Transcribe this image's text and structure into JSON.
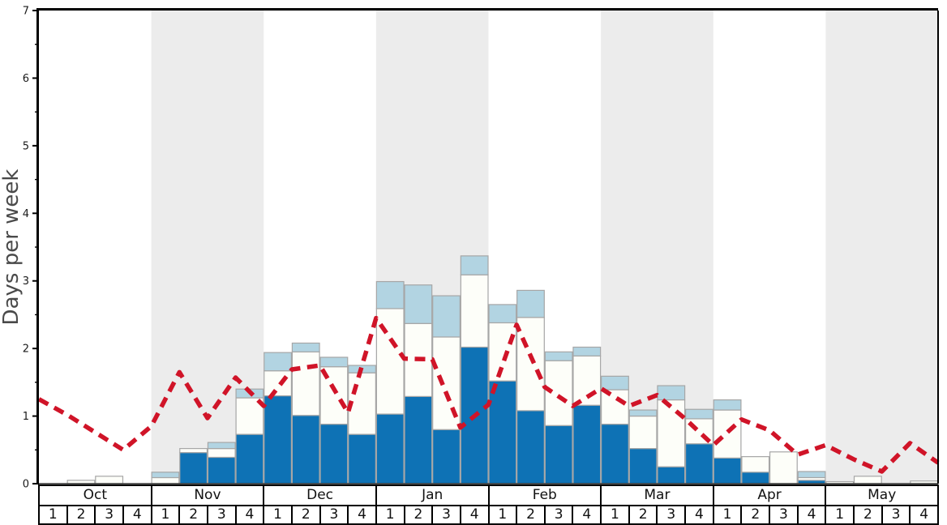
{
  "chart_data": {
    "type": "bar",
    "stacked": true,
    "title": "",
    "ylabel": "Days per week",
    "ylim": [
      0,
      7
    ],
    "y_major_ticks": [
      0,
      1,
      2,
      3,
      4,
      5,
      6,
      7
    ],
    "y_minor_tick_step": 0.5,
    "grid": false,
    "legend": "none",
    "months": [
      "Oct",
      "Nov",
      "Dec",
      "Jan",
      "Feb",
      "Mar",
      "Apr",
      "May"
    ],
    "week_labels": [
      "1",
      "2",
      "3",
      "4"
    ],
    "shaded_months": [
      "Nov",
      "Jan",
      "Mar",
      "May"
    ],
    "colors": {
      "bar_dark_blue": "#0e72b5",
      "bar_white": "#fdfef9",
      "bar_light_blue": "#b2d4e2",
      "bar_outline": "#a6a6a6",
      "dashed_line_red": "#d01428",
      "month_band_gray": "#ececec",
      "axis_black": "#000000"
    },
    "series": [
      {
        "name": "dark-blue-days",
        "color": "#0e72b5",
        "values": [
          0,
          0,
          0,
          0,
          0,
          0.46,
          0.39,
          0.73,
          1.3,
          1.01,
          0.88,
          0.73,
          1.03,
          1.29,
          0.8,
          2.02,
          1.52,
          1.08,
          0.86,
          1.16,
          0.88,
          0.52,
          0.25,
          0.59,
          0.38,
          0.17,
          0,
          0.05,
          0,
          0,
          0,
          0
        ]
      },
      {
        "name": "white-days",
        "color": "#fdfef9",
        "values": [
          0,
          0.05,
          0.11,
          0,
          0.09,
          0.06,
          0.13,
          0.54,
          0.37,
          0.94,
          0.85,
          0.91,
          1.56,
          1.08,
          1.37,
          1.07,
          0.86,
          1.38,
          0.96,
          0.73,
          0.51,
          0.48,
          0.99,
          0.37,
          0.71,
          0.23,
          0.47,
          0.04,
          0.03,
          0.11,
          0,
          0.04
        ]
      },
      {
        "name": "light-blue-days",
        "color": "#b2d4e2",
        "values": [
          0,
          0,
          0,
          0,
          0.08,
          0,
          0.09,
          0.13,
          0.27,
          0.13,
          0.14,
          0.11,
          0.4,
          0.57,
          0.61,
          0.28,
          0.27,
          0.4,
          0.13,
          0.13,
          0.2,
          0.09,
          0.21,
          0.14,
          0.15,
          0,
          0,
          0.09,
          0,
          0,
          0,
          0
        ]
      }
    ],
    "line": {
      "name": "red-dashed-trend-line",
      "color": "#d01428",
      "style": "dashed",
      "points_at": "week-boundaries",
      "values": [
        1.25,
        1.02,
        0.76,
        0.5,
        0.85,
        1.65,
        0.97,
        1.57,
        1.15,
        1.69,
        1.75,
        1.05,
        2.45,
        1.85,
        1.84,
        0.83,
        1.17,
        2.35,
        1.43,
        1.15,
        1.41,
        1.15,
        1.31,
        0.96,
        0.57,
        0.95,
        0.79,
        0.43,
        0.57,
        0.36,
        0.18,
        0.6,
        0.31
      ]
    }
  }
}
